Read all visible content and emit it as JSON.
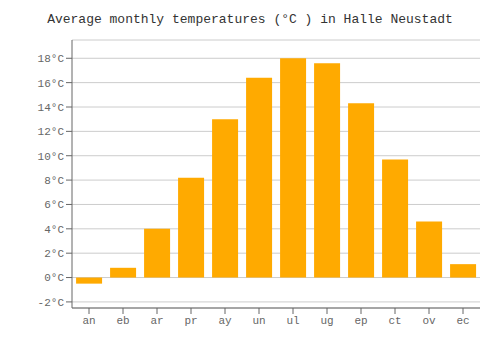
{
  "chart_data": {
    "type": "bar",
    "title": "Average monthly temperatures (°C ) in Halle Neustadt",
    "categories": [
      "an",
      "eb",
      "ar",
      "pr",
      "ay",
      "un",
      "ul",
      "ug",
      "ep",
      "ct",
      "ov",
      "ec"
    ],
    "values": [
      -0.5,
      0.8,
      4.0,
      8.2,
      13.0,
      16.4,
      18.0,
      17.6,
      14.3,
      9.7,
      4.6,
      1.1
    ],
    "color": "#FFAA00",
    "ylim": [
      -2.5,
      19.5
    ],
    "yticks": [
      {
        "value": -2,
        "label": "-2°C"
      },
      {
        "value": 0,
        "label": "0°C"
      },
      {
        "value": 2,
        "label": "2°C"
      },
      {
        "value": 4,
        "label": "4°C"
      },
      {
        "value": 6,
        "label": "6°C"
      },
      {
        "value": 8,
        "label": "8°C"
      },
      {
        "value": 10,
        "label": "10°C"
      },
      {
        "value": 12,
        "label": "12°C"
      },
      {
        "value": 14,
        "label": "14°C"
      },
      {
        "value": 16,
        "label": "16°C"
      },
      {
        "value": 18,
        "label": "18°C"
      }
    ],
    "grid": true
  }
}
